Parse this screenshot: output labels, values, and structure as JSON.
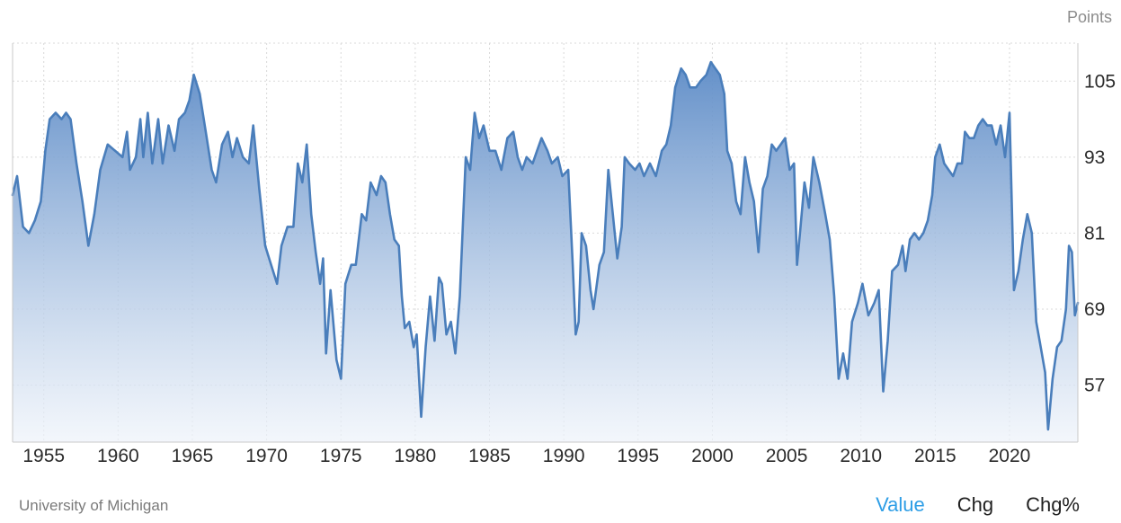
{
  "chart_data": {
    "type": "area",
    "title": "",
    "unit_label": "Points",
    "xlabel": "",
    "ylabel": "",
    "xlim": [
      1952.9,
      2024.6
    ],
    "ylim": [
      48,
      111
    ],
    "y_ticks": [
      57,
      69,
      81,
      93,
      105
    ],
    "x_ticks": [
      1955,
      1960,
      1965,
      1970,
      1975,
      1980,
      1985,
      1990,
      1995,
      2000,
      2005,
      2010,
      2015,
      2020
    ],
    "grid": true,
    "legend": "none",
    "colors": {
      "line": "#4a7ebb",
      "fill_top": "#5b8ac6",
      "fill_bottom": "#eef3fa"
    },
    "series": [
      {
        "points": [
          [
            1952.9,
            87
          ],
          [
            1953.2,
            90
          ],
          [
            1953.6,
            82
          ],
          [
            1954.0,
            81
          ],
          [
            1954.4,
            83
          ],
          [
            1954.8,
            86
          ],
          [
            1955.1,
            94
          ],
          [
            1955.4,
            99
          ],
          [
            1955.8,
            100
          ],
          [
            1956.2,
            99
          ],
          [
            1956.5,
            100
          ],
          [
            1956.8,
            99
          ],
          [
            1957.2,
            92
          ],
          [
            1957.6,
            86
          ],
          [
            1958.0,
            79
          ],
          [
            1958.4,
            84
          ],
          [
            1958.8,
            91
          ],
          [
            1959.3,
            95
          ],
          [
            1959.8,
            94
          ],
          [
            1960.3,
            93
          ],
          [
            1960.6,
            97
          ],
          [
            1960.8,
            91
          ],
          [
            1961.2,
            93
          ],
          [
            1961.5,
            99
          ],
          [
            1961.7,
            93
          ],
          [
            1962.0,
            100
          ],
          [
            1962.3,
            92
          ],
          [
            1962.7,
            99
          ],
          [
            1963.0,
            92
          ],
          [
            1963.4,
            98
          ],
          [
            1963.8,
            94
          ],
          [
            1964.1,
            99
          ],
          [
            1964.5,
            100
          ],
          [
            1964.8,
            102
          ],
          [
            1965.1,
            106
          ],
          [
            1965.5,
            103
          ],
          [
            1965.9,
            97
          ],
          [
            1966.3,
            91
          ],
          [
            1966.6,
            89
          ],
          [
            1967.0,
            95
          ],
          [
            1967.4,
            97
          ],
          [
            1967.7,
            93
          ],
          [
            1968.0,
            96
          ],
          [
            1968.4,
            93
          ],
          [
            1968.8,
            92
          ],
          [
            1969.1,
            98
          ],
          [
            1969.5,
            88
          ],
          [
            1969.9,
            79
          ],
          [
            1970.3,
            76
          ],
          [
            1970.7,
            73
          ],
          [
            1971.0,
            79
          ],
          [
            1971.4,
            82
          ],
          [
            1971.8,
            82
          ],
          [
            1972.1,
            92
          ],
          [
            1972.4,
            89
          ],
          [
            1972.7,
            95
          ],
          [
            1973.0,
            84
          ],
          [
            1973.3,
            78
          ],
          [
            1973.6,
            73
          ],
          [
            1973.8,
            77
          ],
          [
            1974.0,
            62
          ],
          [
            1974.3,
            72
          ],
          [
            1974.7,
            61
          ],
          [
            1975.0,
            58
          ],
          [
            1975.3,
            73
          ],
          [
            1975.7,
            76
          ],
          [
            1976.0,
            76
          ],
          [
            1976.4,
            84
          ],
          [
            1976.7,
            83
          ],
          [
            1977.0,
            89
          ],
          [
            1977.4,
            87
          ],
          [
            1977.7,
            90
          ],
          [
            1978.0,
            89
          ],
          [
            1978.3,
            84
          ],
          [
            1978.6,
            80
          ],
          [
            1978.9,
            79
          ],
          [
            1979.1,
            71
          ],
          [
            1979.3,
            66
          ],
          [
            1979.6,
            67
          ],
          [
            1979.9,
            63
          ],
          [
            1980.1,
            65
          ],
          [
            1980.4,
            52
          ],
          [
            1980.7,
            63
          ],
          [
            1981.0,
            71
          ],
          [
            1981.3,
            64
          ],
          [
            1981.6,
            74
          ],
          [
            1981.8,
            73
          ],
          [
            1982.1,
            65
          ],
          [
            1982.4,
            67
          ],
          [
            1982.7,
            62
          ],
          [
            1983.0,
            71
          ],
          [
            1983.4,
            93
          ],
          [
            1983.7,
            91
          ],
          [
            1984.0,
            100
          ],
          [
            1984.3,
            96
          ],
          [
            1984.6,
            98
          ],
          [
            1985.0,
            94
          ],
          [
            1985.4,
            94
          ],
          [
            1985.8,
            91
          ],
          [
            1986.2,
            96
          ],
          [
            1986.6,
            97
          ],
          [
            1986.9,
            93
          ],
          [
            1987.2,
            91
          ],
          [
            1987.5,
            93
          ],
          [
            1987.9,
            92
          ],
          [
            1988.2,
            94
          ],
          [
            1988.5,
            96
          ],
          [
            1988.9,
            94
          ],
          [
            1989.2,
            92
          ],
          [
            1989.6,
            93
          ],
          [
            1989.9,
            90
          ],
          [
            1990.3,
            91
          ],
          [
            1990.6,
            76
          ],
          [
            1990.8,
            65
          ],
          [
            1991.0,
            67
          ],
          [
            1991.2,
            81
          ],
          [
            1991.5,
            79
          ],
          [
            1991.8,
            72
          ],
          [
            1992.0,
            69
          ],
          [
            1992.4,
            76
          ],
          [
            1992.7,
            78
          ],
          [
            1993.0,
            91
          ],
          [
            1993.3,
            84
          ],
          [
            1993.6,
            77
          ],
          [
            1993.9,
            82
          ],
          [
            1994.1,
            93
          ],
          [
            1994.4,
            92
          ],
          [
            1994.8,
            91
          ],
          [
            1995.1,
            92
          ],
          [
            1995.4,
            90
          ],
          [
            1995.8,
            92
          ],
          [
            1996.2,
            90
          ],
          [
            1996.6,
            94
          ],
          [
            1996.9,
            95
          ],
          [
            1997.2,
            98
          ],
          [
            1997.5,
            104
          ],
          [
            1997.9,
            107
          ],
          [
            1998.2,
            106
          ],
          [
            1998.5,
            104
          ],
          [
            1998.9,
            104
          ],
          [
            1999.2,
            105
          ],
          [
            1999.6,
            106
          ],
          [
            1999.9,
            108
          ],
          [
            2000.2,
            107
          ],
          [
            2000.5,
            106
          ],
          [
            2000.8,
            103
          ],
          [
            2001.0,
            94
          ],
          [
            2001.3,
            92
          ],
          [
            2001.6,
            86
          ],
          [
            2001.9,
            84
          ],
          [
            2002.2,
            93
          ],
          [
            2002.5,
            89
          ],
          [
            2002.8,
            86
          ],
          [
            2003.1,
            78
          ],
          [
            2003.4,
            88
          ],
          [
            2003.7,
            90
          ],
          [
            2004.0,
            95
          ],
          [
            2004.3,
            94
          ],
          [
            2004.6,
            95
          ],
          [
            2004.9,
            96
          ],
          [
            2005.2,
            91
          ],
          [
            2005.5,
            92
          ],
          [
            2005.7,
            76
          ],
          [
            2005.9,
            81
          ],
          [
            2006.2,
            89
          ],
          [
            2006.5,
            85
          ],
          [
            2006.8,
            93
          ],
          [
            2007.2,
            89
          ],
          [
            2007.6,
            84
          ],
          [
            2007.9,
            80
          ],
          [
            2008.2,
            71
          ],
          [
            2008.5,
            58
          ],
          [
            2008.8,
            62
          ],
          [
            2009.1,
            58
          ],
          [
            2009.4,
            67
          ],
          [
            2009.8,
            70
          ],
          [
            2010.1,
            73
          ],
          [
            2010.5,
            68
          ],
          [
            2010.9,
            70
          ],
          [
            2011.2,
            72
          ],
          [
            2011.5,
            56
          ],
          [
            2011.8,
            64
          ],
          [
            2012.1,
            75
          ],
          [
            2012.5,
            76
          ],
          [
            2012.8,
            79
          ],
          [
            2013.0,
            75
          ],
          [
            2013.3,
            80
          ],
          [
            2013.6,
            81
          ],
          [
            2013.9,
            80
          ],
          [
            2014.2,
            81
          ],
          [
            2014.5,
            83
          ],
          [
            2014.8,
            87
          ],
          [
            2015.0,
            93
          ],
          [
            2015.3,
            95
          ],
          [
            2015.6,
            92
          ],
          [
            2015.9,
            91
          ],
          [
            2016.2,
            90
          ],
          [
            2016.5,
            92
          ],
          [
            2016.8,
            92
          ],
          [
            2017.0,
            97
          ],
          [
            2017.3,
            96
          ],
          [
            2017.6,
            96
          ],
          [
            2017.9,
            98
          ],
          [
            2018.2,
            99
          ],
          [
            2018.5,
            98
          ],
          [
            2018.8,
            98
          ],
          [
            2019.1,
            95
          ],
          [
            2019.4,
            98
          ],
          [
            2019.7,
            93
          ],
          [
            2020.0,
            100
          ],
          [
            2020.3,
            72
          ],
          [
            2020.6,
            75
          ],
          [
            2020.9,
            80
          ],
          [
            2021.2,
            84
          ],
          [
            2021.5,
            81
          ],
          [
            2021.8,
            67
          ],
          [
            2022.1,
            63
          ],
          [
            2022.4,
            59
          ],
          [
            2022.6,
            50
          ],
          [
            2022.9,
            58
          ],
          [
            2023.2,
            63
          ],
          [
            2023.5,
            64
          ],
          [
            2023.8,
            69
          ],
          [
            2024.0,
            79
          ],
          [
            2024.2,
            78
          ],
          [
            2024.4,
            68
          ],
          [
            2024.6,
            70
          ]
        ]
      }
    ]
  },
  "footer": {
    "source": "University of Michigan",
    "toggles": {
      "value": "Value",
      "chg": "Chg",
      "chg_pct": "Chg%"
    }
  }
}
